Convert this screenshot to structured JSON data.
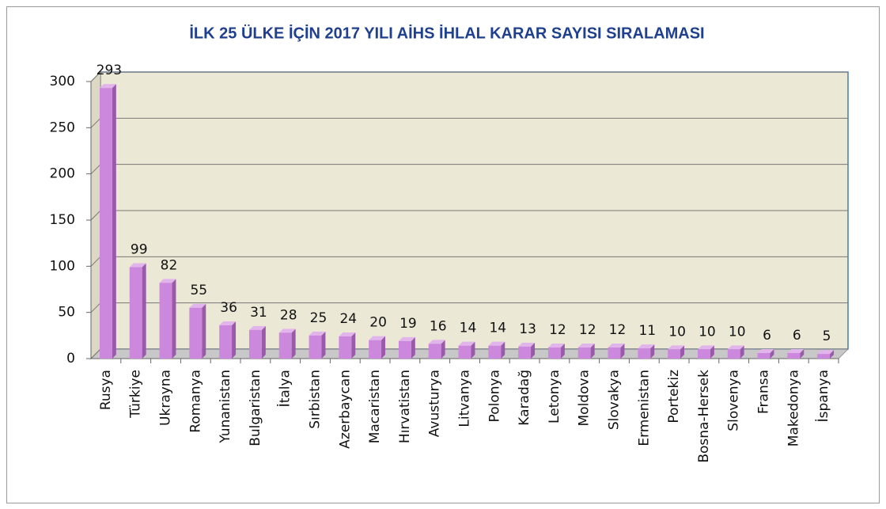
{
  "chart_data": {
    "type": "bar",
    "title": "İLK 25 ÜLKE İÇİN 2017 YILI AİHS İHLAL KARAR SAYISI SIRALAMASI",
    "categories": [
      "Rusya",
      "Türkiye",
      "Ukrayna",
      "Romanya",
      "Yunanistan",
      "Bulgaristan",
      "İtalya",
      "Sırbistan",
      "Azerbaycan",
      "Macaristan",
      "Hırvatistan",
      "Avusturya",
      "Litvanya",
      "Polonya",
      "Karadağ",
      "Letonya",
      "Moldova",
      "Slovakya",
      "Ermenistan",
      "Portekiz",
      "Bosna-Hersek",
      "Slovenya",
      "Fransa",
      "Makedonya",
      "İspanya"
    ],
    "values": [
      293,
      99,
      82,
      55,
      36,
      31,
      28,
      25,
      24,
      20,
      19,
      16,
      14,
      14,
      13,
      12,
      12,
      12,
      11,
      10,
      10,
      10,
      6,
      6,
      5
    ],
    "color": "#cc88dd",
    "ylim": [
      0,
      300
    ],
    "yticks": [
      0,
      50,
      100,
      150,
      200,
      250,
      300
    ],
    "grid": true
  }
}
